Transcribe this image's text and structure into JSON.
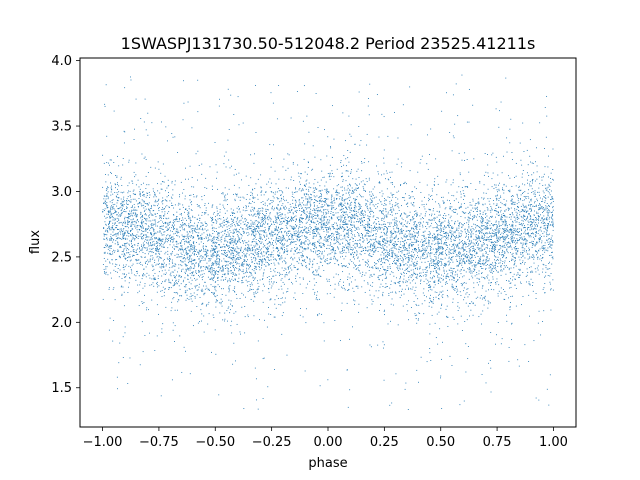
{
  "chart_data": {
    "type": "scatter",
    "title": "1SWASPJ131730.50-512048.2 Period 23525.41211s",
    "xlabel": "phase",
    "ylabel": "flux",
    "xlim": [
      -1.1,
      1.1
    ],
    "ylim": [
      1.2,
      4.02
    ],
    "x_ticks": [
      -1.0,
      -0.75,
      -0.5,
      -0.25,
      0.0,
      0.25,
      0.5,
      0.75,
      1.0
    ],
    "x_tick_labels": [
      "−1.00",
      "−0.75",
      "−0.50",
      "−0.25",
      "0.00",
      "0.25",
      "0.50",
      "0.75",
      "1.00"
    ],
    "y_ticks": [
      1.5,
      2.0,
      2.5,
      3.0,
      3.5,
      4.0
    ],
    "y_tick_labels": [
      "1.5",
      "2.0",
      "2.5",
      "3.0",
      "3.5",
      "4.0"
    ],
    "grid": false,
    "point_color": "#1f77b4",
    "series": [
      {
        "x_range": [
          -1.0,
          1.0
        ],
        "baseline_flux": 2.58,
        "hump_peaks_phase": [
          -1.0,
          0.0,
          1.0
        ],
        "hump_peak_flux": 2.75,
        "trough_flux": 2.55,
        "core_scatter": 0.2,
        "outlier_range": [
          1.33,
          3.9
        ]
      }
    ]
  }
}
